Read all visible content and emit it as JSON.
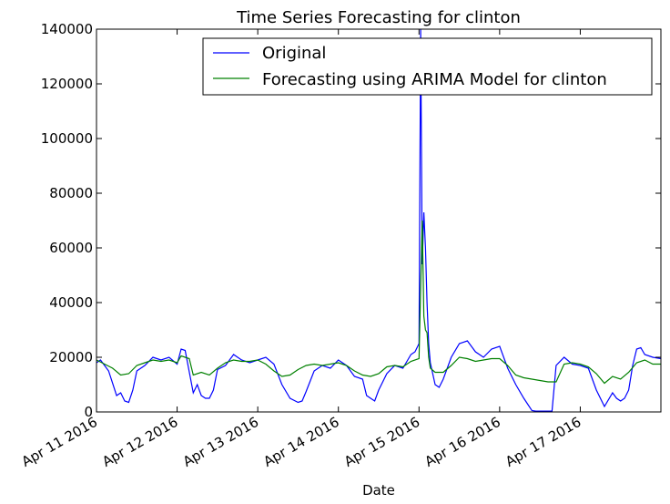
{
  "chart_data": {
    "type": "line",
    "title": "Time Series Forecasting for clinton",
    "xlabel": "Date",
    "ylabel": "",
    "ylim": [
      0,
      140000
    ],
    "xlim_days": [
      0,
      7
    ],
    "y_ticks": [
      0,
      20000,
      40000,
      60000,
      80000,
      100000,
      120000,
      140000
    ],
    "y_tick_labels": [
      "0",
      "20000",
      "40000",
      "60000",
      "80000",
      "100000",
      "120000",
      "140000"
    ],
    "x_tick_labels": [
      "Apr 11 2016",
      "Apr 12 2016",
      "Apr 13 2016",
      "Apr 14 2016",
      "Apr 15 2016",
      "Apr 16 2016",
      "Apr 17 2016"
    ],
    "legend_position": "top-right",
    "grid": false,
    "series": [
      {
        "name": "Original",
        "color": "#0000ff",
        "x": [
          0,
          0.05,
          0.15,
          0.25,
          0.3,
          0.35,
          0.4,
          0.45,
          0.5,
          0.6,
          0.7,
          0.75,
          0.8,
          0.9,
          1.0,
          1.05,
          1.1,
          1.2,
          1.25,
          1.3,
          1.35,
          1.4,
          1.45,
          1.5,
          1.6,
          1.7,
          1.8,
          1.9,
          2.0,
          2.1,
          2.2,
          2.3,
          2.4,
          2.5,
          2.55,
          2.6,
          2.7,
          2.8,
          2.9,
          3.0,
          3.1,
          3.2,
          3.3,
          3.35,
          3.4,
          3.45,
          3.5,
          3.6,
          3.7,
          3.8,
          3.9,
          3.95,
          4.0,
          4.02,
          4.04,
          4.06,
          4.08,
          4.1,
          4.12,
          4.14,
          4.2,
          4.25,
          4.3,
          4.4,
          4.5,
          4.6,
          4.7,
          4.8,
          4.9,
          5.0,
          5.1,
          5.2,
          5.3,
          5.4,
          5.45,
          5.5,
          5.6,
          5.65,
          5.7,
          5.8,
          5.9,
          6.0,
          6.1,
          6.2,
          6.3,
          6.4,
          6.45,
          6.5,
          6.55,
          6.6,
          6.65,
          6.7,
          6.75,
          6.8,
          6.9,
          7.0
        ],
        "values": [
          18000,
          19000,
          15000,
          6000,
          7000,
          4000,
          3500,
          8000,
          15000,
          17000,
          20000,
          19500,
          19000,
          20000,
          17500,
          23000,
          22500,
          7000,
          10000,
          6000,
          5000,
          5000,
          8000,
          15500,
          17000,
          21000,
          19000,
          18000,
          19000,
          20000,
          17500,
          10000,
          5000,
          3500,
          4000,
          7500,
          15000,
          17000,
          16000,
          19000,
          17000,
          13000,
          12000,
          6000,
          5000,
          4000,
          8000,
          14000,
          17000,
          16000,
          21000,
          22000,
          25000,
          140000,
          54000,
          73000,
          60000,
          40000,
          25000,
          18000,
          10000,
          9000,
          12000,
          20000,
          25000,
          26000,
          22000,
          20000,
          23000,
          24000,
          16000,
          10000,
          5000,
          500,
          300,
          300,
          300,
          300,
          17000,
          20000,
          17500,
          17000,
          16000,
          8000,
          2000,
          7000,
          5000,
          4000,
          5000,
          8000,
          17000,
          23000,
          23500,
          21000,
          20000,
          19500
        ]
      },
      {
        "name": "Forecasting using ARIMA Model for clinton",
        "color": "#008000",
        "x": [
          0,
          0.1,
          0.2,
          0.3,
          0.4,
          0.5,
          0.6,
          0.7,
          0.8,
          0.9,
          1.0,
          1.05,
          1.15,
          1.2,
          1.3,
          1.4,
          1.5,
          1.6,
          1.7,
          1.8,
          1.9,
          2.0,
          2.1,
          2.2,
          2.3,
          2.4,
          2.5,
          2.6,
          2.7,
          2.8,
          2.9,
          3.0,
          3.1,
          3.2,
          3.3,
          3.4,
          3.5,
          3.6,
          3.7,
          3.8,
          3.9,
          4.0,
          4.04,
          4.06,
          4.08,
          4.1,
          4.12,
          4.14,
          4.2,
          4.3,
          4.4,
          4.5,
          4.6,
          4.7,
          4.8,
          4.9,
          5.0,
          5.1,
          5.2,
          5.3,
          5.4,
          5.5,
          5.6,
          5.7,
          5.8,
          5.9,
          6.0,
          6.1,
          6.2,
          6.3,
          6.4,
          6.5,
          6.6,
          6.7,
          6.8,
          6.9,
          7.0
        ],
        "values": [
          19000,
          17500,
          16000,
          13500,
          14000,
          17000,
          18000,
          19000,
          18500,
          19000,
          18000,
          20500,
          19500,
          13500,
          14500,
          13500,
          16000,
          18000,
          19000,
          18500,
          18500,
          19000,
          17500,
          15000,
          13000,
          13500,
          15500,
          17000,
          17500,
          17000,
          17500,
          18000,
          17000,
          15000,
          13500,
          13000,
          14000,
          16500,
          17000,
          16500,
          18500,
          19500,
          70000,
          35000,
          30000,
          29000,
          20000,
          16000,
          14500,
          14500,
          17000,
          20000,
          19500,
          18500,
          19000,
          19500,
          19500,
          17000,
          13500,
          12500,
          12000,
          11500,
          11000,
          11000,
          17500,
          18000,
          17500,
          16500,
          14000,
          10500,
          13000,
          12000,
          14500,
          18000,
          19000,
          17500,
          17500
        ]
      }
    ]
  }
}
